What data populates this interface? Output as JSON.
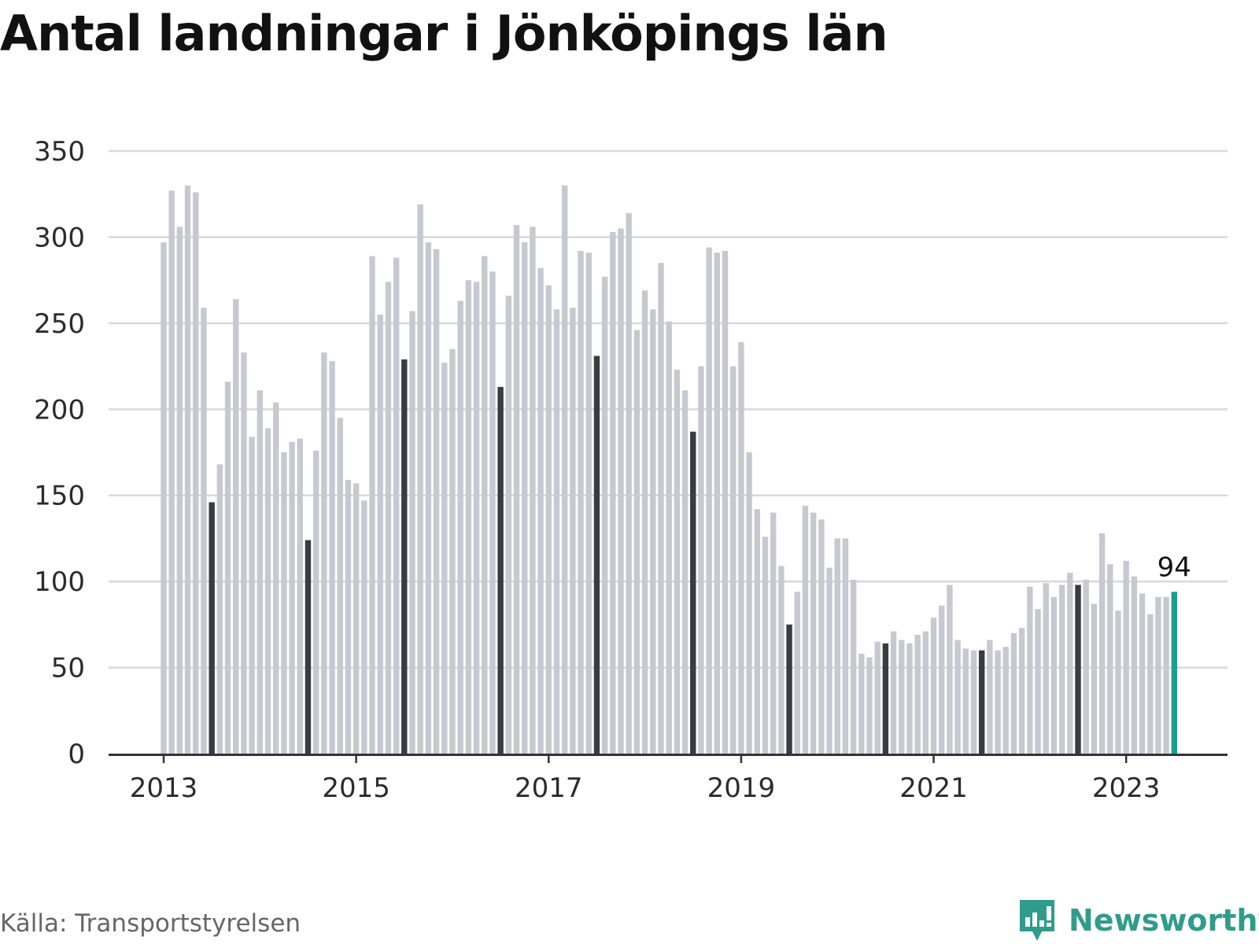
{
  "title": "Antal landningar i Jönköpings län",
  "source": "Källa: Transportstyrelsen",
  "logo_text": "Newsworthy",
  "colors": {
    "bar": "#c8c8d0",
    "bar_july": "#3b3b45",
    "bar_latest": "#1a9e8f",
    "grid": "#d9d9d9",
    "axis": "#333333",
    "logo": "#2f9c8c"
  },
  "chart_data": {
    "type": "bar",
    "title": "Antal landningar i Jönköpings län",
    "xlabel": "",
    "ylabel": "",
    "ylim": [
      0,
      350
    ],
    "yticks": [
      0,
      50,
      100,
      150,
      200,
      250,
      300,
      350
    ],
    "xticks": [
      "2013",
      "2015",
      "2017",
      "2019",
      "2021",
      "2023"
    ],
    "grid": true,
    "start": "2013-01",
    "frequency": "monthly",
    "highlight": "July of each year in dark grey; latest month in teal",
    "data_label": {
      "category": "2023-07",
      "value": 94,
      "text": "94"
    },
    "categories": [
      "2013-01",
      "2013-02",
      "2013-03",
      "2013-04",
      "2013-05",
      "2013-06",
      "2013-07",
      "2013-08",
      "2013-09",
      "2013-10",
      "2013-11",
      "2013-12",
      "2014-01",
      "2014-02",
      "2014-03",
      "2014-04",
      "2014-05",
      "2014-06",
      "2014-07",
      "2014-08",
      "2014-09",
      "2014-10",
      "2014-11",
      "2014-12",
      "2015-01",
      "2015-02",
      "2015-03",
      "2015-04",
      "2015-05",
      "2015-06",
      "2015-07",
      "2015-08",
      "2015-09",
      "2015-10",
      "2015-11",
      "2015-12",
      "2016-01",
      "2016-02",
      "2016-03",
      "2016-04",
      "2016-05",
      "2016-06",
      "2016-07",
      "2016-08",
      "2016-09",
      "2016-10",
      "2016-11",
      "2016-12",
      "2017-01",
      "2017-02",
      "2017-03",
      "2017-04",
      "2017-05",
      "2017-06",
      "2017-07",
      "2017-08",
      "2017-09",
      "2017-10",
      "2017-11",
      "2017-12",
      "2018-01",
      "2018-02",
      "2018-03",
      "2018-04",
      "2018-05",
      "2018-06",
      "2018-07",
      "2018-08",
      "2018-09",
      "2018-10",
      "2018-11",
      "2018-12",
      "2019-01",
      "2019-02",
      "2019-03",
      "2019-04",
      "2019-05",
      "2019-06",
      "2019-07",
      "2019-08",
      "2019-09",
      "2019-10",
      "2019-11",
      "2019-12",
      "2020-01",
      "2020-02",
      "2020-03",
      "2020-04",
      "2020-05",
      "2020-06",
      "2020-07",
      "2020-08",
      "2020-09",
      "2020-10",
      "2020-11",
      "2020-12",
      "2021-01",
      "2021-02",
      "2021-03",
      "2021-04",
      "2021-05",
      "2021-06",
      "2021-07",
      "2021-08",
      "2021-09",
      "2021-10",
      "2021-11",
      "2021-12",
      "2022-01",
      "2022-02",
      "2022-03",
      "2022-04",
      "2022-05",
      "2022-06",
      "2022-07",
      "2022-08",
      "2022-09",
      "2022-10",
      "2022-11",
      "2022-12",
      "2023-01",
      "2023-02",
      "2023-03",
      "2023-04",
      "2023-05",
      "2023-06",
      "2023-07"
    ],
    "values": [
      297,
      327,
      306,
      330,
      326,
      259,
      146,
      168,
      216,
      264,
      233,
      184,
      211,
      189,
      204,
      175,
      181,
      183,
      124,
      176,
      233,
      228,
      195,
      159,
      157,
      147,
      289,
      255,
      274,
      288,
      229,
      257,
      319,
      297,
      293,
      227,
      235,
      263,
      275,
      274,
      289,
      280,
      213,
      266,
      307,
      297,
      306,
      282,
      272,
      258,
      330,
      259,
      292,
      291,
      231,
      277,
      303,
      305,
      314,
      246,
      269,
      258,
      285,
      251,
      223,
      211,
      187,
      225,
      294,
      291,
      292,
      225,
      239,
      175,
      142,
      126,
      140,
      109,
      75,
      94,
      144,
      140,
      136,
      108,
      125,
      125,
      101,
      58,
      56,
      65,
      64,
      71,
      66,
      64,
      69,
      71,
      79,
      86,
      98,
      66,
      61,
      60,
      60,
      66,
      60,
      62,
      70,
      73,
      97,
      84,
      99,
      91,
      98,
      105,
      98,
      101,
      87,
      128,
      110,
      83,
      112,
      103,
      93,
      81,
      91,
      91,
      94
    ]
  }
}
